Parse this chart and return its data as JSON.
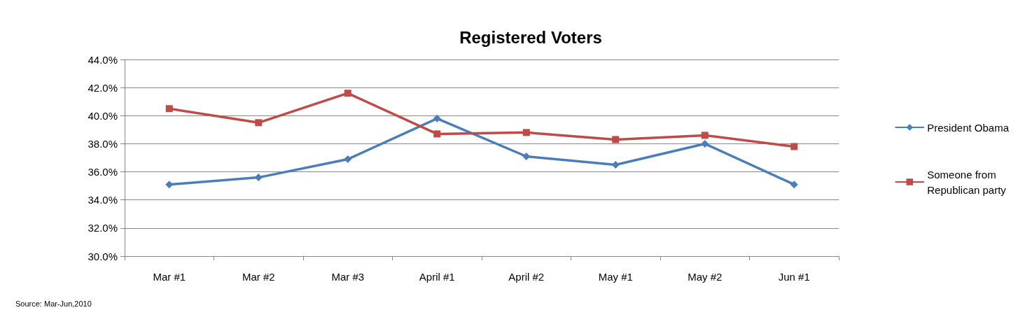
{
  "chart_data": {
    "type": "line",
    "title": "Registered Voters",
    "categories": [
      "Mar #1",
      "Mar #2",
      "Mar #3",
      "April #1",
      "April #2",
      "May #1",
      "May #2",
      "Jun #1"
    ],
    "series": [
      {
        "name": "President Obama",
        "color": "#4a7ebb",
        "marker": "diamond",
        "values": [
          35.1,
          35.6,
          36.9,
          39.8,
          37.1,
          36.5,
          38.0,
          35.1
        ]
      },
      {
        "name": "Someone from Republican party",
        "color": "#be4b48",
        "marker": "square",
        "values": [
          40.5,
          39.5,
          41.6,
          38.7,
          38.8,
          38.3,
          38.6,
          37.8
        ]
      }
    ],
    "ylim": [
      30,
      44
    ],
    "yticks": [
      {
        "value": 30,
        "label": "30.0%"
      },
      {
        "value": 32,
        "label": "32.0%"
      },
      {
        "value": 34,
        "label": "34.0%"
      },
      {
        "value": 36,
        "label": "36.0%"
      },
      {
        "value": 38,
        "label": "38.0%"
      },
      {
        "value": 40,
        "label": "40.0%"
      },
      {
        "value": 42,
        "label": "42.0%"
      },
      {
        "value": 44,
        "label": "44.0%"
      }
    ],
    "grid": "y",
    "legend": "right",
    "line_style": "solid",
    "annotations": [
      "Source: Mar-Jun,2010"
    ]
  }
}
